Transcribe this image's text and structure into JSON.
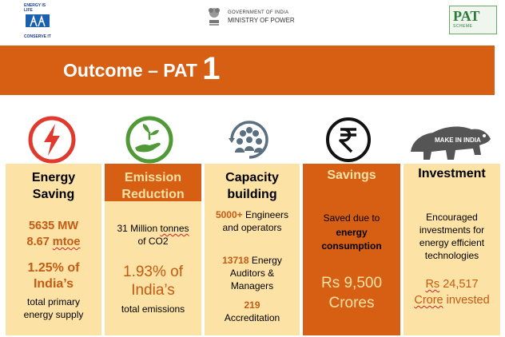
{
  "header": {
    "left_logo_line1": "ENERGY IS LIFE",
    "left_logo_line2": "CONSERVE IT",
    "gov_line1": "GOVERNMENT OF INDIA",
    "gov_line2": "MINISTRY OF POWER",
    "pat_logo_title": "PAT",
    "pat_logo_sub": "SCHEME"
  },
  "banner": {
    "title": "Outcome – PAT",
    "number": "1"
  },
  "icons": {
    "energy": "lightning-bolt-icon",
    "emission": "hand-plant-icon",
    "capacity": "people-group-icon",
    "savings": "rupee-icon",
    "investment": "make-in-india-lion-icon",
    "make_in_india_text": "MAKE IN INDIA"
  },
  "columns": {
    "energy": {
      "head1": "Energy",
      "head2": "Saving",
      "mw": "5635 MW",
      "mtoe_num": "8.67 ",
      "mtoe_unit": "mtoe",
      "pct1": "1.25% of",
      "pct2": "India’s",
      "desc1": "total primary",
      "desc2": "energy supply"
    },
    "emission": {
      "head1": "Emission",
      "head2": "Reduction",
      "line1a": "31 Million ",
      "line1b": "tonnes",
      "line2": "of CO2",
      "pct1": "1.93% of",
      "pct2": "India’s",
      "desc": "total emissions"
    },
    "capacity": {
      "head1": "Capacity",
      "head2": "building",
      "eng_num": "5000+",
      "eng_rest": " Engineers",
      "eng_line2": "and operators",
      "aud_num": "13718",
      "aud_rest": " Energy",
      "aud_line2": "Auditors &",
      "aud_line3": "Managers",
      "acc_num": "219",
      "acc_line2": "Accreditation"
    },
    "savings": {
      "head": "Savings",
      "line1": "Saved due to",
      "line2": "energy",
      "line3": "consumption",
      "amt1": "Rs 9,500",
      "amt2": "Crores"
    },
    "investment": {
      "head": "Investment",
      "line1": "Encouraged",
      "line2": "investments for",
      "line3": "energy efficient",
      "line4": "technologies",
      "amt_rs": "Rs",
      "amt_num": " 24,517",
      "amt_crore": "Crore",
      "amt_rest": " invested"
    }
  },
  "colors": {
    "orange": "#d65f13",
    "cream": "#fde2a6",
    "dark_text": "#c45b14",
    "icon_red": "#e03a2f",
    "icon_green": "#4f9a36",
    "icon_blue": "#5a6f80"
  }
}
